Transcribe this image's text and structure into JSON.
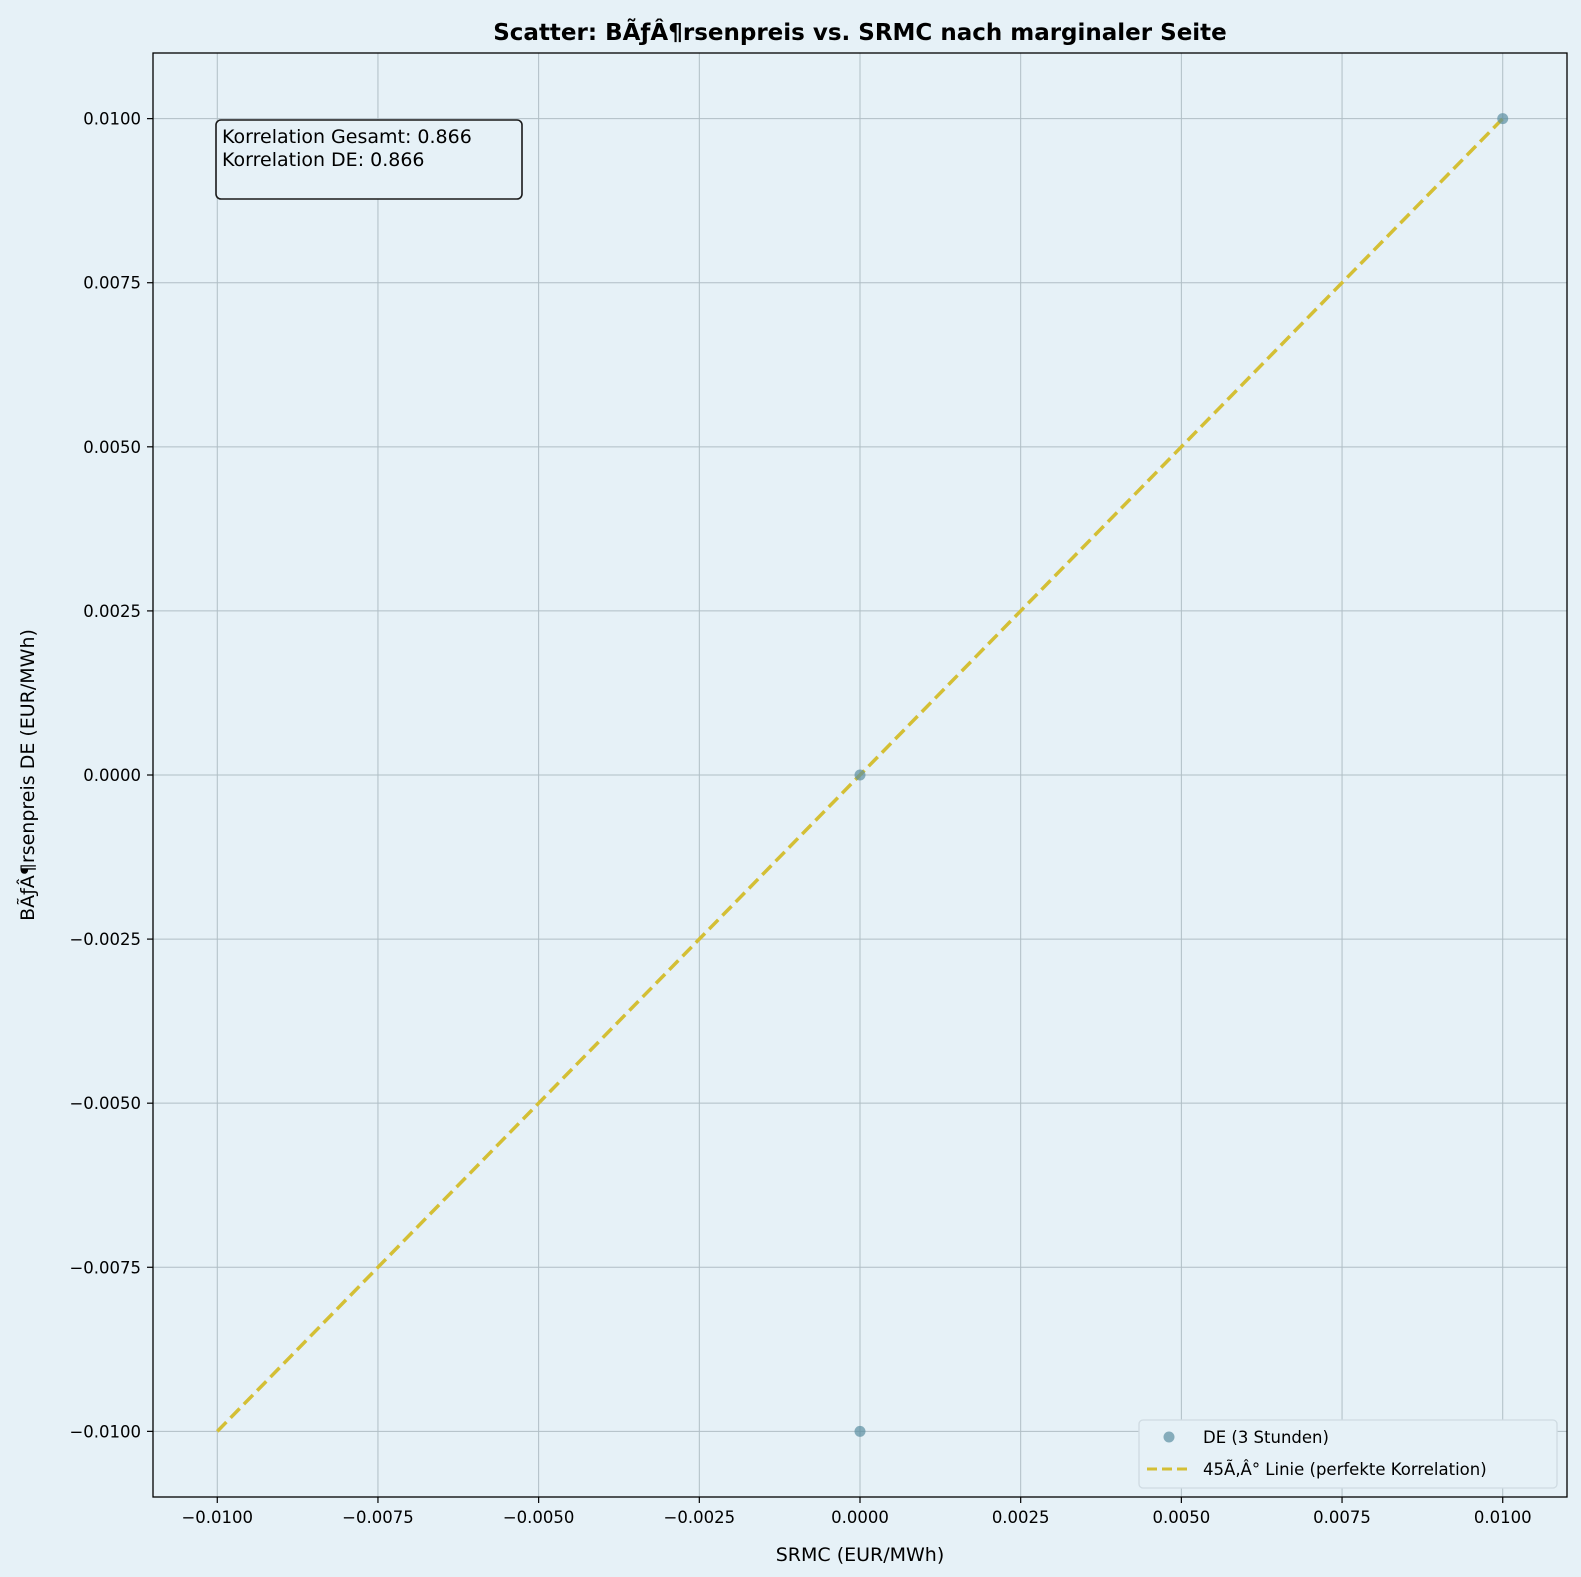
{
  "chart_data": {
    "type": "scatter",
    "title": "Scatter: BÃƒÂ¶rsenpreis vs. SRMC nach marginaler Seite",
    "xlabel": "SRMC (EUR/MWh)",
    "ylabel": "BÃƒÂ¶rsenpreis DE (EUR/MWh)",
    "xlim": [
      -0.011,
      0.011
    ],
    "ylim": [
      -0.011,
      0.011
    ],
    "xticks": [
      -0.01,
      -0.0075,
      -0.005,
      -0.0025,
      0.0,
      0.0025,
      0.005,
      0.0075,
      0.01
    ],
    "yticks": [
      -0.01,
      -0.0075,
      -0.005,
      -0.0025,
      0.0,
      0.0025,
      0.005,
      0.0075,
      0.01
    ],
    "xtick_labels": [
      "−0.0100",
      "−0.0075",
      "−0.0050",
      "−0.0025",
      "0.0000",
      "0.0025",
      "0.0050",
      "0.0075",
      "0.0100"
    ],
    "ytick_labels": [
      "−0.0100",
      "−0.0075",
      "−0.0050",
      "−0.0025",
      "0.0000",
      "0.0025",
      "0.0050",
      "0.0075",
      "0.0100"
    ],
    "grid": true,
    "legend_position": "lower-right",
    "series": [
      {
        "name": "DE (3 Stunden)",
        "kind": "scatter",
        "color": "#5b8fa1",
        "points": [
          {
            "x": 0.0,
            "y": 0.0
          },
          {
            "x": 0.0,
            "y": -0.01
          },
          {
            "x": 0.01,
            "y": 0.01
          }
        ]
      },
      {
        "name": "45Ã‚Â° Linie (perfekte Korrelation)",
        "kind": "line",
        "style": "dashed",
        "color": "#d4bf35",
        "points": [
          {
            "x": -0.01,
            "y": -0.01
          },
          {
            "x": 0.01,
            "y": 0.01
          }
        ]
      }
    ],
    "annotation": {
      "lines": [
        "Korrelation Gesamt: 0.866",
        "Korrelation DE: 0.866"
      ]
    }
  },
  "colors": {
    "figure_background": "#e6f1f7",
    "axes_background": "#e6f1f7",
    "grid": "#b0bec5",
    "scatter": "#5b8fa1",
    "reference_line": "#d4bf35"
  }
}
